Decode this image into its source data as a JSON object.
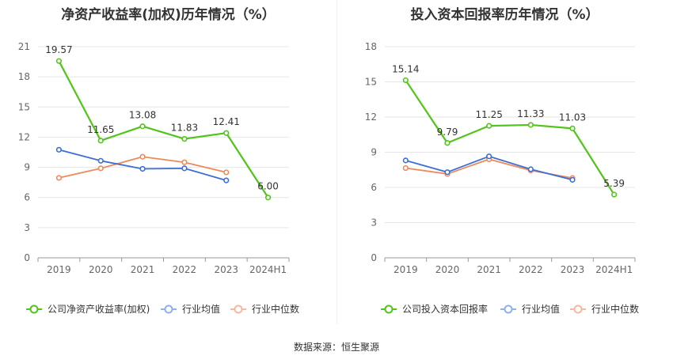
{
  "source_text": "数据来源：恒生聚源",
  "chart_data": [
    {
      "type": "line",
      "title": "净资产收益率(加权)历年情况（%）",
      "categories": [
        "2019",
        "2020",
        "2021",
        "2022",
        "2023",
        "2024H1"
      ],
      "ylim": [
        0,
        21
      ],
      "yticks": [
        0,
        3,
        6,
        9,
        12,
        15,
        18,
        21
      ],
      "grid": true,
      "legend_position": "bottom",
      "series": [
        {
          "name": "公司净资产收益率(加权)",
          "color": "#52c41a",
          "values": [
            19.57,
            11.65,
            13.08,
            11.83,
            12.41,
            6.0
          ],
          "labels": [
            "19.57",
            "11.65",
            "13.08",
            "11.83",
            "12.41",
            "6.00"
          ]
        },
        {
          "name": "行业均值",
          "color": "#3b6fd4",
          "values": [
            10.75,
            9.65,
            8.85,
            8.9,
            7.7,
            null
          ]
        },
        {
          "name": "行业中位数",
          "color": "#ee8a5a",
          "values": [
            7.95,
            8.9,
            10.05,
            9.5,
            8.5,
            null
          ]
        }
      ]
    },
    {
      "type": "line",
      "title": "投入资本回报率历年情况（%）",
      "categories": [
        "2019",
        "2020",
        "2021",
        "2022",
        "2023",
        "2024H1"
      ],
      "ylim": [
        0,
        18
      ],
      "yticks": [
        0,
        3,
        6,
        9,
        12,
        15,
        18
      ],
      "grid": true,
      "legend_position": "bottom",
      "series": [
        {
          "name": "公司投入资本回报率",
          "color": "#52c41a",
          "values": [
            15.14,
            9.79,
            11.25,
            11.33,
            11.03,
            5.39
          ],
          "labels": [
            "15.14",
            "9.79",
            "11.25",
            "11.33",
            "11.03",
            "5.39"
          ]
        },
        {
          "name": "行业均值",
          "color": "#3b6fd4",
          "values": [
            8.3,
            7.3,
            8.65,
            7.55,
            6.65,
            null
          ]
        },
        {
          "name": "行业中位数",
          "color": "#ee8a5a",
          "values": [
            7.65,
            7.15,
            8.4,
            7.45,
            6.8,
            null
          ]
        }
      ]
    }
  ]
}
